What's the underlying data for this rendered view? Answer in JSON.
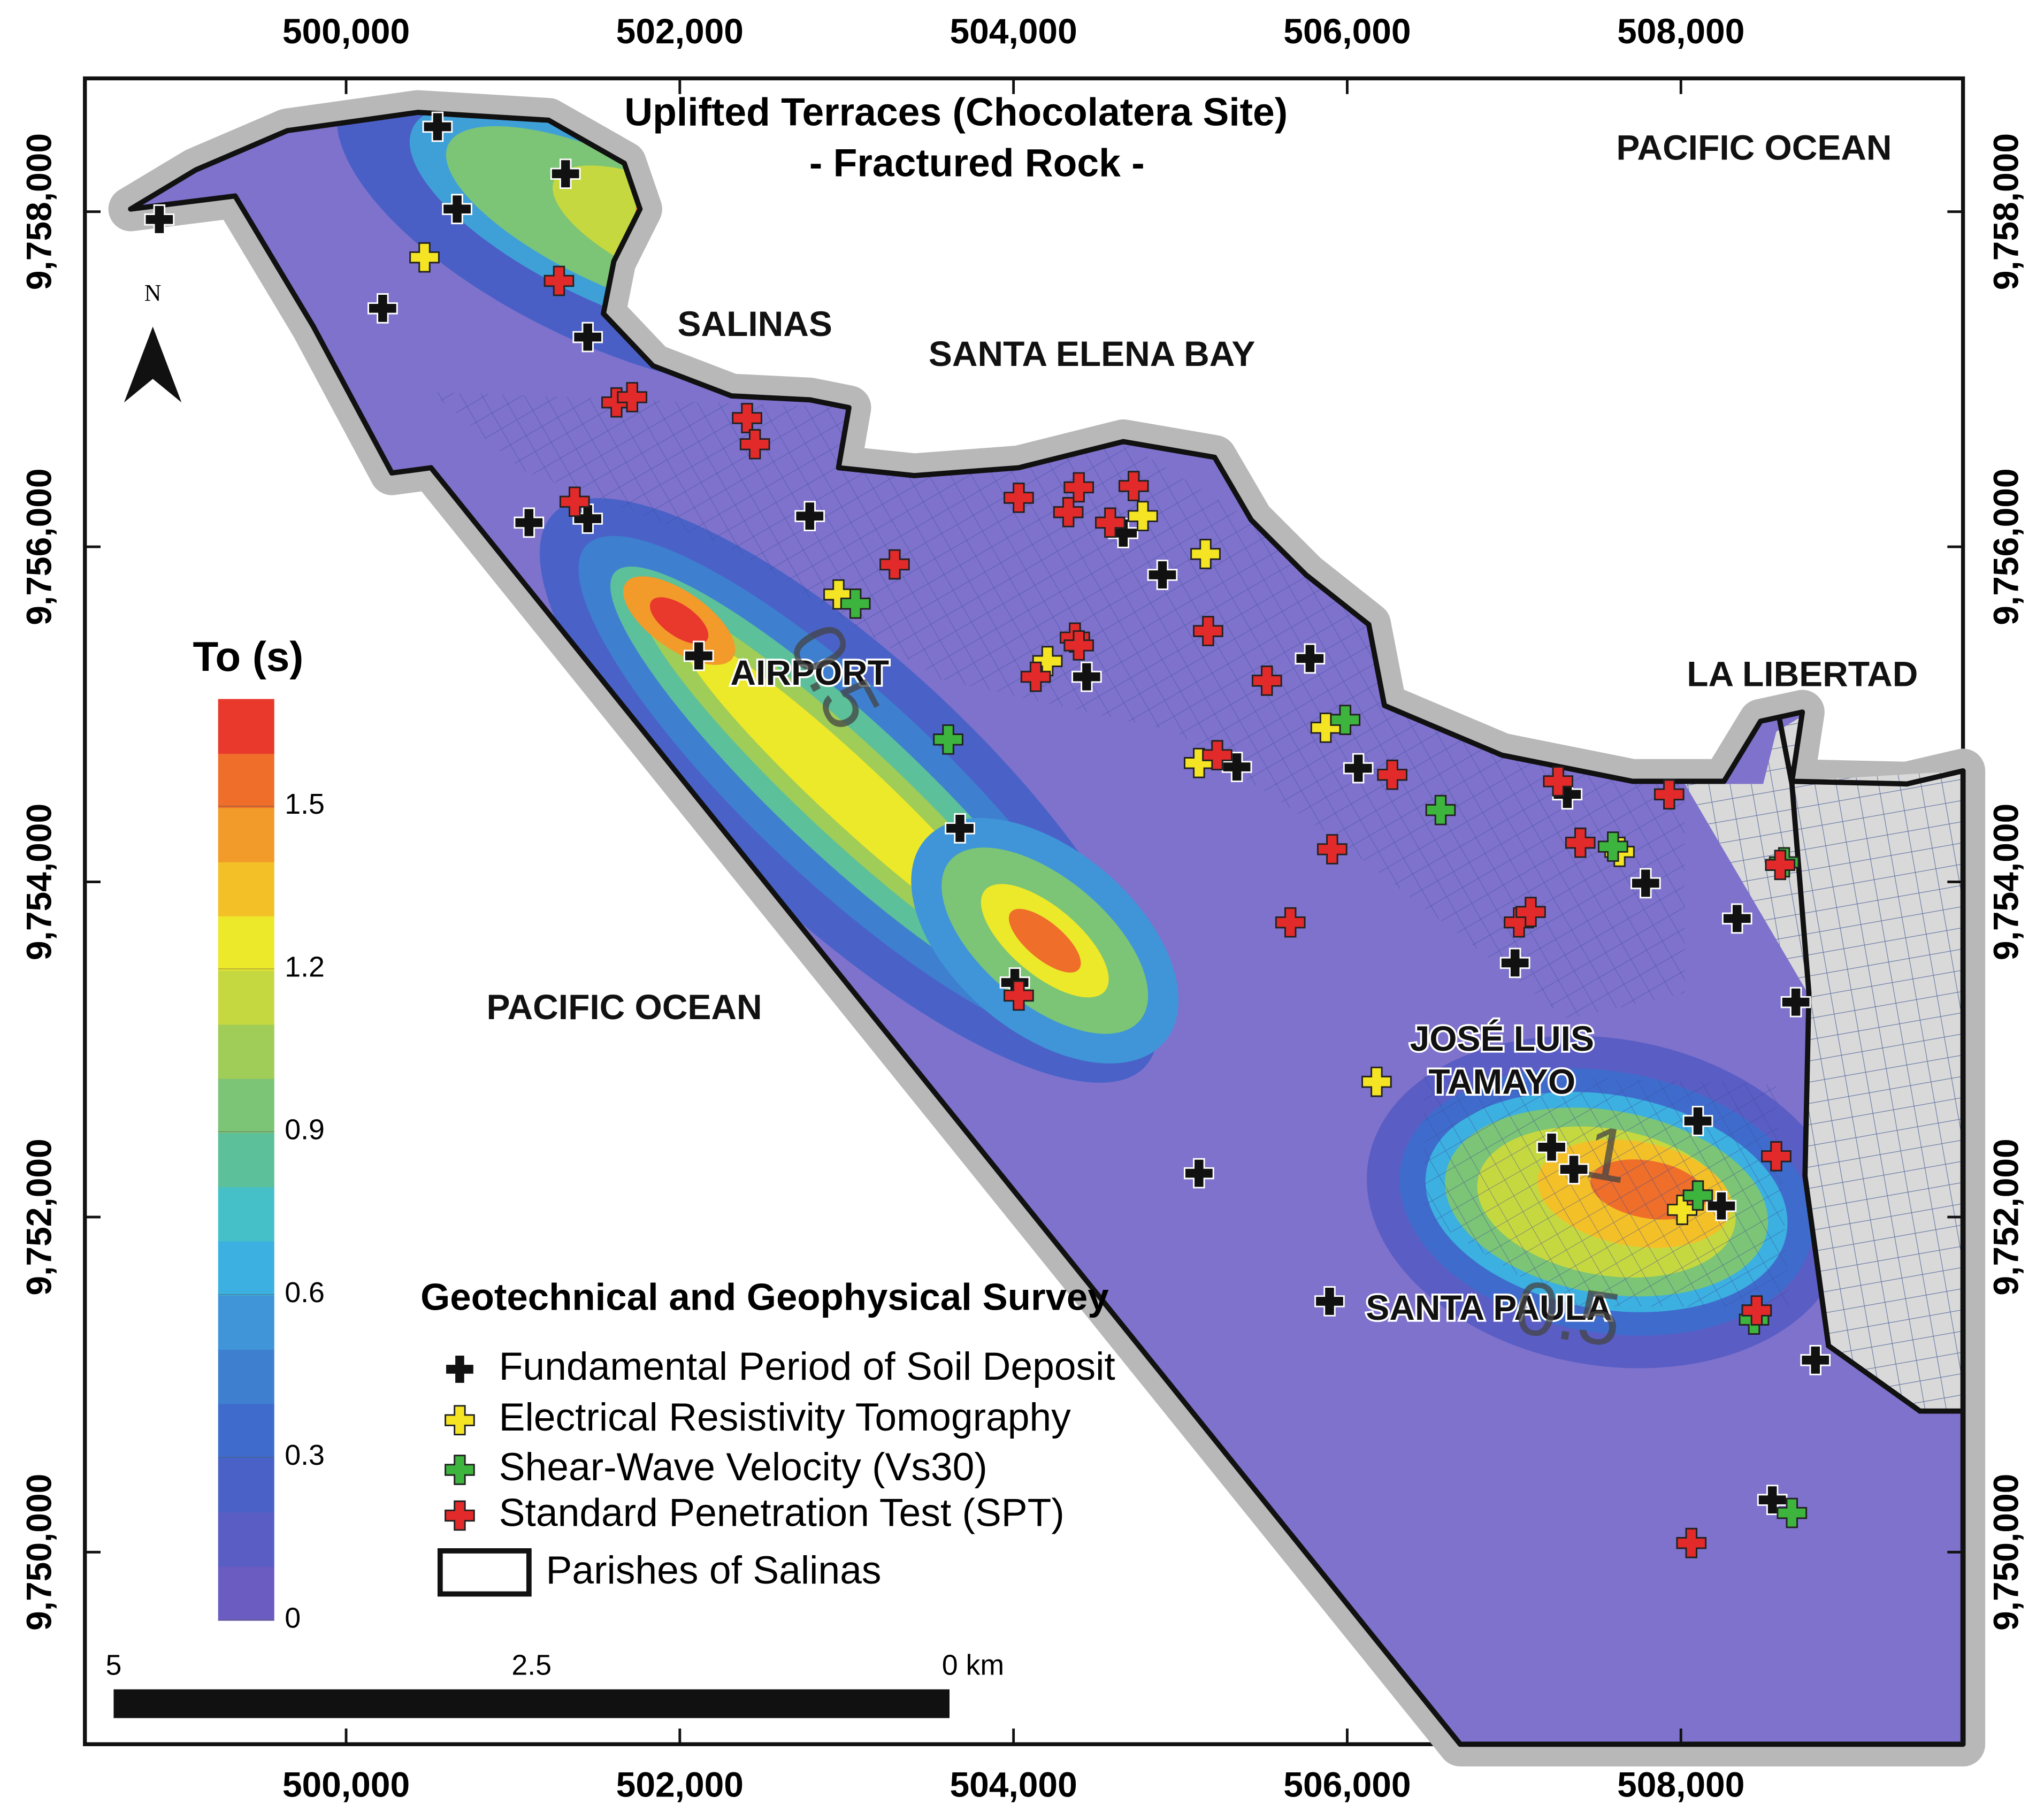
{
  "title": [
    "Uplifted Terraces (Chocolatera Site)",
    "- Fractured Rock -"
  ],
  "places": [
    "PACIFIC OCEAN",
    "SALINAS",
    "SANTA ELENA BAY",
    "AIRPORT",
    "LA LIBERTAD",
    "PACIFIC OCEAN",
    "JOSÉ LUIS",
    "TAMAYO",
    "SANTA PAULA"
  ],
  "north": "N",
  "contour_labels": [
    "0.5",
    "1",
    "0.5"
  ],
  "axes": {
    "x_ticks": [
      {
        "value": 500000,
        "label": "500,000"
      },
      {
        "value": 502000,
        "label": "502,000"
      },
      {
        "value": 504000,
        "label": "504,000"
      },
      {
        "value": 506000,
        "label": "506,000"
      },
      {
        "value": 508000,
        "label": "508,000"
      }
    ],
    "y_ticks": [
      {
        "value": 9758000,
        "label": "9,758,000"
      },
      {
        "value": 9756000,
        "label": "9,756,000"
      },
      {
        "value": 9754000,
        "label": "9,754,000"
      },
      {
        "value": 9752000,
        "label": "9,752,000"
      },
      {
        "value": 9750000,
        "label": "9,750,000"
      }
    ]
  },
  "colorbar": {
    "title": "To (s)",
    "ticks": [
      0,
      0.3,
      0.6,
      0.9,
      1.2,
      1.5
    ],
    "colors": [
      "#6a5cc0",
      "#5a5dc4",
      "#4a62c8",
      "#3f6ccc",
      "#3e7fd0",
      "#3f95d8",
      "#3cb0e0",
      "#45c0c8",
      "#5cc09a",
      "#7cc476",
      "#a0cc58",
      "#c6d840",
      "#ece82a",
      "#f4c028",
      "#f29a2a",
      "#ee6e2a",
      "#e8392c"
    ]
  },
  "legend": {
    "title": "Geotechnical and Geophysical Survey",
    "items": [
      {
        "label": "Fundamental Period of Soil Deposit",
        "color": "#111111"
      },
      {
        "label": "Electrical Resistivity Tomography",
        "color": "#f4e424"
      },
      {
        "label": "Shear-Wave Velocity (Vs30)",
        "color": "#3db43d"
      },
      {
        "label": "Standard Penetration Test (SPT)",
        "color": "#e22a2a"
      }
    ],
    "boundary": "Parishes of Salinas"
  },
  "scale_bar": {
    "labels": [
      "5",
      "2.5",
      "0 km"
    ]
  }
}
